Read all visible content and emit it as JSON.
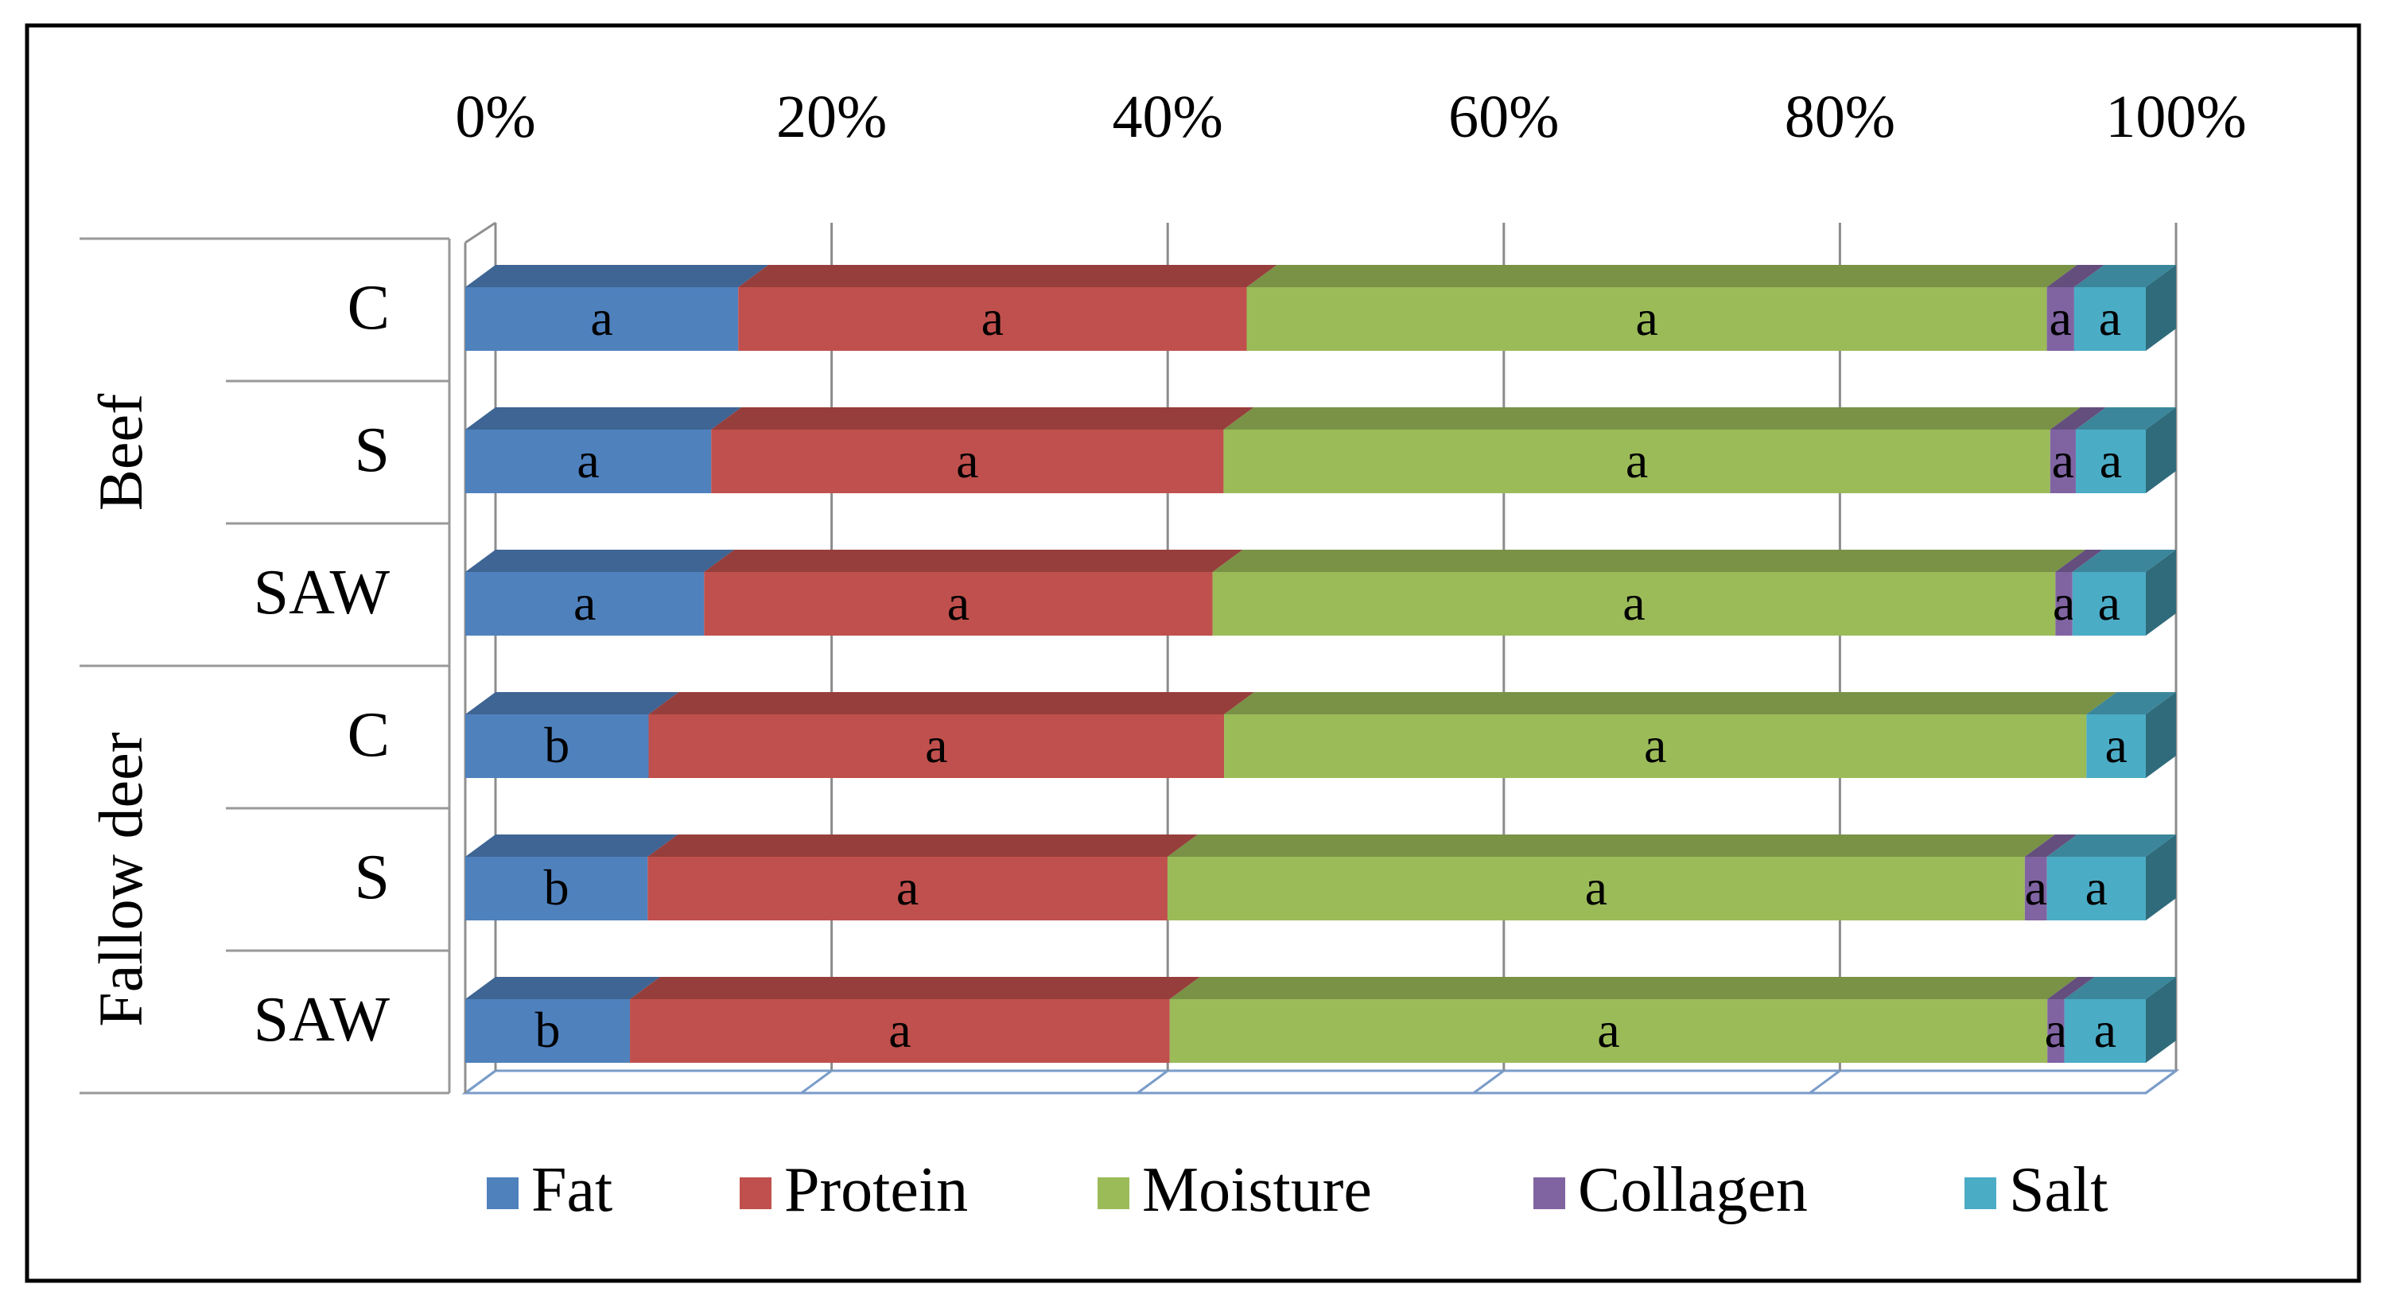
{
  "chart_data": {
    "type": "bar",
    "orientation": "horizontal",
    "stacked": "percent",
    "three_d": true,
    "title": "",
    "xlabel": "",
    "ylabel": "",
    "xlim": [
      0,
      100
    ],
    "x_ticks": [
      "0%",
      "20%",
      "40%",
      "60%",
      "80%",
      "100%"
    ],
    "x_tick_position": "top",
    "grid": true,
    "legend_position": "bottom",
    "groups": [
      {
        "label": "Beef",
        "categories": [
          "C",
          "S",
          "SAW"
        ]
      },
      {
        "label": "Fallow deer",
        "categories": [
          "C",
          "S",
          "SAW"
        ]
      }
    ],
    "series": [
      {
        "name": "Fat",
        "color": "#4f81bd",
        "values": [
          16.0,
          14.4,
          14.0,
          10.8,
          10.7,
          9.7
        ]
      },
      {
        "name": "Protein",
        "color": "#c0504d",
        "values": [
          29.8,
          30.0,
          29.8,
          33.9,
          30.5,
          31.8
        ]
      },
      {
        "name": "Moisture",
        "color": "#9bbb59",
        "values": [
          46.9,
          48.4,
          49.4,
          50.8,
          50.3,
          51.7
        ]
      },
      {
        "name": "Collagen",
        "color": "#8064a2",
        "values": [
          1.6,
          1.5,
          1.0,
          0.0,
          1.3,
          1.0
        ]
      },
      {
        "name": "Salt",
        "color": "#4bacc6",
        "values": [
          4.2,
          4.1,
          4.3,
          3.5,
          5.8,
          4.8
        ]
      }
    ],
    "significance_labels": [
      [
        "a",
        "a",
        "a",
        "a",
        "a"
      ],
      [
        "a",
        "a",
        "a",
        "a",
        "a"
      ],
      [
        "a",
        "a",
        "a",
        "a",
        "a"
      ],
      [
        "b",
        "a",
        "a",
        "",
        "a"
      ],
      [
        "b",
        "a",
        "a",
        "a",
        "a"
      ],
      [
        "b",
        "a",
        "a",
        "a",
        "a"
      ]
    ]
  }
}
